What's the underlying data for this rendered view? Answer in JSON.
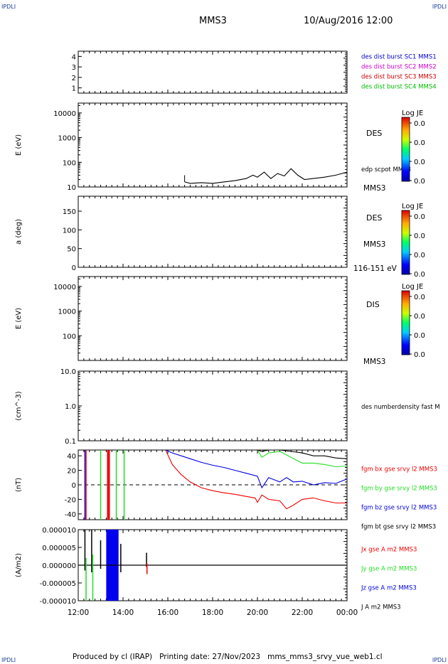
{
  "header": {
    "corner_tl": "IPDLI",
    "corner_tr": "IPDLI",
    "title": "MMS3",
    "datetime": "10/Aug/2016 12:00",
    "corner_bl": "IPDLI",
    "corner_br": "IPDLI"
  },
  "footer": {
    "text": "Produced by cl (IRAP)   Printing date: 27/Nov/2023   mms_mms3_srvy_vue_web1.cl"
  },
  "colors": {
    "mms1": "#0000cc",
    "mms2": "#cc00cc",
    "mms3": "#cc0000",
    "mms4": "#00bb00",
    "black": "#000000",
    "red": "#ee0000",
    "green": "#22dd22",
    "blue": "#0000dd"
  },
  "chart_data": [
    {
      "id": "panel-burst",
      "type": "line",
      "ylim": [
        0.5,
        4.5
      ],
      "yticks": [
        "1",
        "2",
        "3",
        "4"
      ],
      "ytick_values": [
        1,
        2,
        3,
        4
      ],
      "legend": [
        {
          "text": "des dist burst SC1 MMS1",
          "color": "#0000cc"
        },
        {
          "text": "des dist burst SC2 MMS2",
          "color": "#cc00cc"
        },
        {
          "text": "des dist burst SC3 MMS3",
          "color": "#cc0000"
        },
        {
          "text": "des dist burst SC4 MMS4",
          "color": "#00bb00"
        }
      ]
    },
    {
      "id": "panel-des-energy",
      "type": "heatmap",
      "ylabel": "E (eV)",
      "scale": "log",
      "ylim": [
        10,
        25000
      ],
      "yticks": [
        "10",
        "100",
        "1000",
        "10000"
      ],
      "ytick_values": [
        10,
        100,
        1000,
        10000
      ],
      "label_main": "DES",
      "label_sub": "MMS3",
      "overlay_label": "edp scpot MMS3",
      "overlay_series": {
        "name": "edp scpot MMS3",
        "x_hours": [
          16.75,
          17.0,
          17.5,
          18.0,
          18.5,
          19.0,
          19.5,
          19.8,
          20.0,
          20.3,
          20.6,
          20.9,
          21.2,
          21.5,
          21.8,
          22.1,
          22.5,
          23.0,
          23.5,
          24.0
        ],
        "y_ev": [
          16,
          14,
          15,
          14,
          16,
          18,
          22,
          30,
          25,
          40,
          22,
          35,
          28,
          55,
          30,
          20,
          22,
          25,
          30,
          40
        ]
      },
      "colorbar": {
        "title": "Log JE",
        "ticks": [
          "0.0",
          "0.0",
          "0.0",
          "0.0"
        ]
      }
    },
    {
      "id": "panel-des-pitch",
      "type": "heatmap",
      "ylabel": "a (deg)",
      "ylim": [
        0,
        190
      ],
      "yticks": [
        "0",
        "50",
        "100",
        "150"
      ],
      "ytick_values": [
        0,
        50,
        100,
        150
      ],
      "label_main": "DES",
      "label_sub": "MMS3",
      "label_bottom": "116-151 eV",
      "colorbar": {
        "title": "Log JE",
        "ticks": [
          "0.0",
          "0.0",
          "0.0",
          "0.0"
        ]
      }
    },
    {
      "id": "panel-dis-energy",
      "type": "heatmap",
      "ylabel": "E (eV)",
      "scale": "log",
      "ylim": [
        10,
        25000
      ],
      "yticks": [
        "100",
        "1000",
        "10000"
      ],
      "ytick_values": [
        100,
        1000,
        10000
      ],
      "label_main": "DIS",
      "label_sub": "MMS3",
      "colorbar": {
        "title": "Log JE",
        "ticks": [
          "0.0",
          "0.0",
          "0.0",
          "0.0"
        ]
      }
    },
    {
      "id": "panel-density",
      "type": "line",
      "ylabel": "(cm^-3)",
      "scale": "log",
      "ylim": [
        0.1,
        10.0
      ],
      "yticks": [
        "0.1",
        "1.0",
        "10.0"
      ],
      "ytick_values": [
        0.1,
        1.0,
        10.0
      ],
      "legend": [
        {
          "text": "des numberdensity fast M",
          "color": "#000000"
        }
      ]
    },
    {
      "id": "panel-fgm",
      "type": "line",
      "ylabel": "(nT)",
      "ylim": [
        -48,
        48
      ],
      "yticks": [
        "-40",
        "-20",
        "0",
        "20",
        "40"
      ],
      "ytick_values": [
        -40,
        -20,
        0,
        20,
        40
      ],
      "legend": [
        {
          "text": "fgm bx gse srvy l2 MMS3",
          "color": "#ee0000"
        },
        {
          "text": "fgm by gse srvy l2 MMS3",
          "color": "#22dd22"
        },
        {
          "text": "fgm bz gse srvy l2 MMS3",
          "color": "#0000dd"
        },
        {
          "text": "fgm bt gse srvy l2 MMS3",
          "color": "#000000"
        }
      ],
      "series": [
        {
          "name": "fgm bx gse srvy l2 MMS3",
          "color": "#ee0000",
          "x_hours": [
            15.9,
            16.2,
            16.6,
            17.0,
            17.5,
            18.0,
            18.5,
            19.0,
            19.5,
            19.9,
            20.0,
            20.2,
            20.5,
            21.0,
            21.3,
            21.6,
            22.0,
            22.5,
            23.0,
            23.5,
            24.0
          ],
          "values": [
            48,
            28,
            14,
            4,
            -4,
            -8,
            -11,
            -13,
            -16,
            -18,
            -24,
            -14,
            -20,
            -22,
            -33,
            -28,
            -20,
            -18,
            -22,
            -25,
            -25
          ]
        },
        {
          "name": "fgm by gse srvy l2 MMS3",
          "color": "#22dd22",
          "x_hours": [
            19.0,
            19.5,
            20.0,
            20.2,
            20.5,
            21.0,
            21.5,
            22.0,
            22.5,
            23.0,
            23.5,
            24.0
          ],
          "values": [
            49,
            49,
            48,
            38,
            44,
            46,
            38,
            30,
            30,
            28,
            25,
            26
          ]
        },
        {
          "name": "fgm bz gse srvy l2 MMS3",
          "color": "#0000dd",
          "x_hours": [
            15.9,
            16.2,
            16.6,
            17.0,
            17.5,
            18.0,
            18.5,
            19.0,
            19.5,
            20.0,
            20.2,
            20.5,
            21.0,
            21.3,
            21.6,
            22.0,
            22.5,
            23.0,
            23.5,
            24.0
          ],
          "values": [
            48,
            44,
            40,
            36,
            31,
            27,
            24,
            20,
            16,
            12,
            -4,
            10,
            4,
            10,
            4,
            5,
            0,
            3,
            2,
            8
          ]
        },
        {
          "name": "fgm bt gse srvy l2 MMS3",
          "color": "#000000",
          "x_hours": [
            19.0,
            19.5,
            20.0,
            20.2,
            20.5,
            21.0,
            21.5,
            22.0,
            22.5,
            23.0,
            23.5,
            24.0
          ],
          "values": [
            49,
            49,
            49,
            46,
            49,
            49,
            46,
            44,
            40,
            40,
            37,
            36
          ]
        }
      ],
      "bursts": [
        {
          "x_hours": 12.3,
          "color": "#0000dd"
        },
        {
          "x_hours": 12.35,
          "color": "#ee0000"
        },
        {
          "x_hours": 13.0,
          "color": "#22dd22"
        },
        {
          "x_hours": 13.35,
          "color": "#ee0000"
        },
        {
          "x_hours": 13.7,
          "color": "#22dd22"
        },
        {
          "x_hours": 14.05,
          "color": "#22dd22"
        }
      ]
    },
    {
      "id": "panel-current",
      "type": "line",
      "ylabel": "(A/m2)",
      "ylim": [
        -1e-05,
        1e-05
      ],
      "yticks": [
        "-0.000010",
        "-0.000005",
        "0.000000",
        "0.000005",
        "0.000010"
      ],
      "ytick_values": [
        -1e-05,
        -5e-06,
        0,
        5e-06,
        1e-05
      ],
      "legend": [
        {
          "text": "Jx gse A m2 MMS3",
          "color": "#ee0000"
        },
        {
          "text": "Jy gse A m2 MMS3",
          "color": "#22dd22"
        },
        {
          "text": "Jz gse A m2 MMS3",
          "color": "#0000dd"
        },
        {
          "text": "J A m2 MMS3",
          "color": "#000000"
        }
      ],
      "blue_block": {
        "x_start_hours": 13.25,
        "x_end_hours": 13.8
      },
      "spikes": [
        {
          "x_hours": 12.3,
          "color": "#000000",
          "top": 1e-05,
          "bottom": -1.5e-06
        },
        {
          "x_hours": 12.35,
          "color": "#22dd22",
          "top": 2e-06,
          "bottom": -1e-05
        },
        {
          "x_hours": 12.6,
          "color": "#000000",
          "top": 1e-05,
          "bottom": -2e-06
        },
        {
          "x_hours": 12.65,
          "color": "#22dd22",
          "top": 3e-06,
          "bottom": -1e-05
        },
        {
          "x_hours": 13.0,
          "color": "#000000",
          "top": 7e-06,
          "bottom": -1e-06
        },
        {
          "x_hours": 13.9,
          "color": "#000000",
          "top": 6e-06,
          "bottom": -2e-06
        },
        {
          "x_hours": 15.05,
          "color": "#000000",
          "top": 3.5e-06,
          "bottom": -5e-07
        },
        {
          "x_hours": 15.07,
          "color": "#ee0000",
          "top": 5e-07,
          "bottom": -2.5e-06
        }
      ]
    }
  ],
  "xaxis": {
    "start_hours": 12,
    "end_hours": 24,
    "tick_labels": [
      "12:00",
      "14:00",
      "16:00",
      "18:00",
      "20:00",
      "22:00",
      "00:00"
    ],
    "tick_hours": [
      12,
      14,
      16,
      18,
      20,
      22,
      24
    ]
  }
}
